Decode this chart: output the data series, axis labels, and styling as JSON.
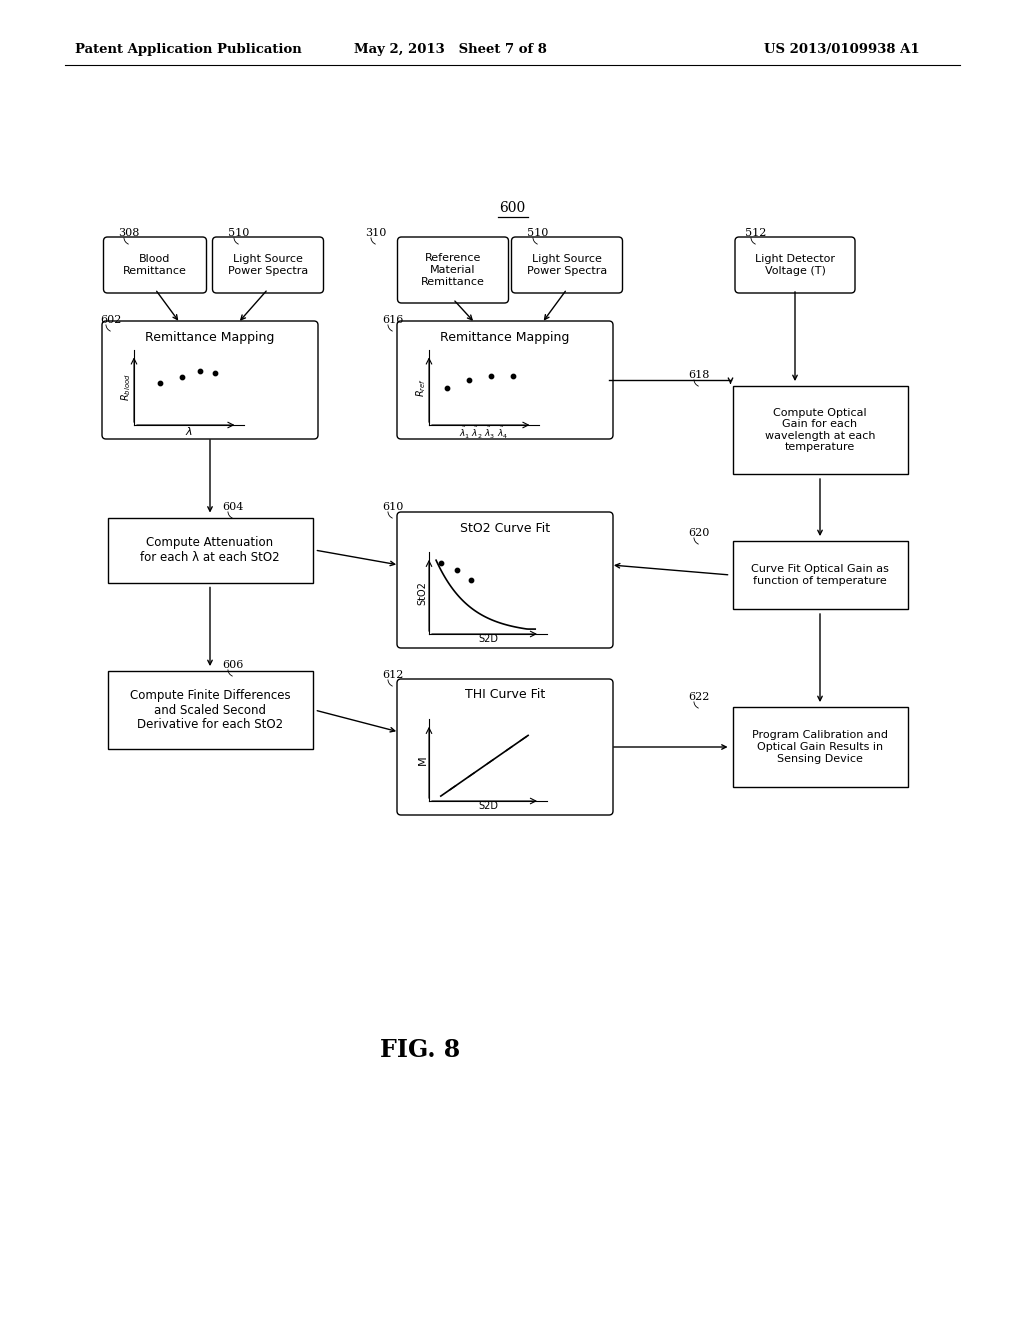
{
  "bg_color": "#ffffff",
  "header_left": "Patent Application Publication",
  "header_mid": "May 2, 2013   Sheet 7 of 8",
  "header_right": "US 2013/0109938 A1",
  "fig_label": "FIG. 8",
  "diagram_label": "600"
}
